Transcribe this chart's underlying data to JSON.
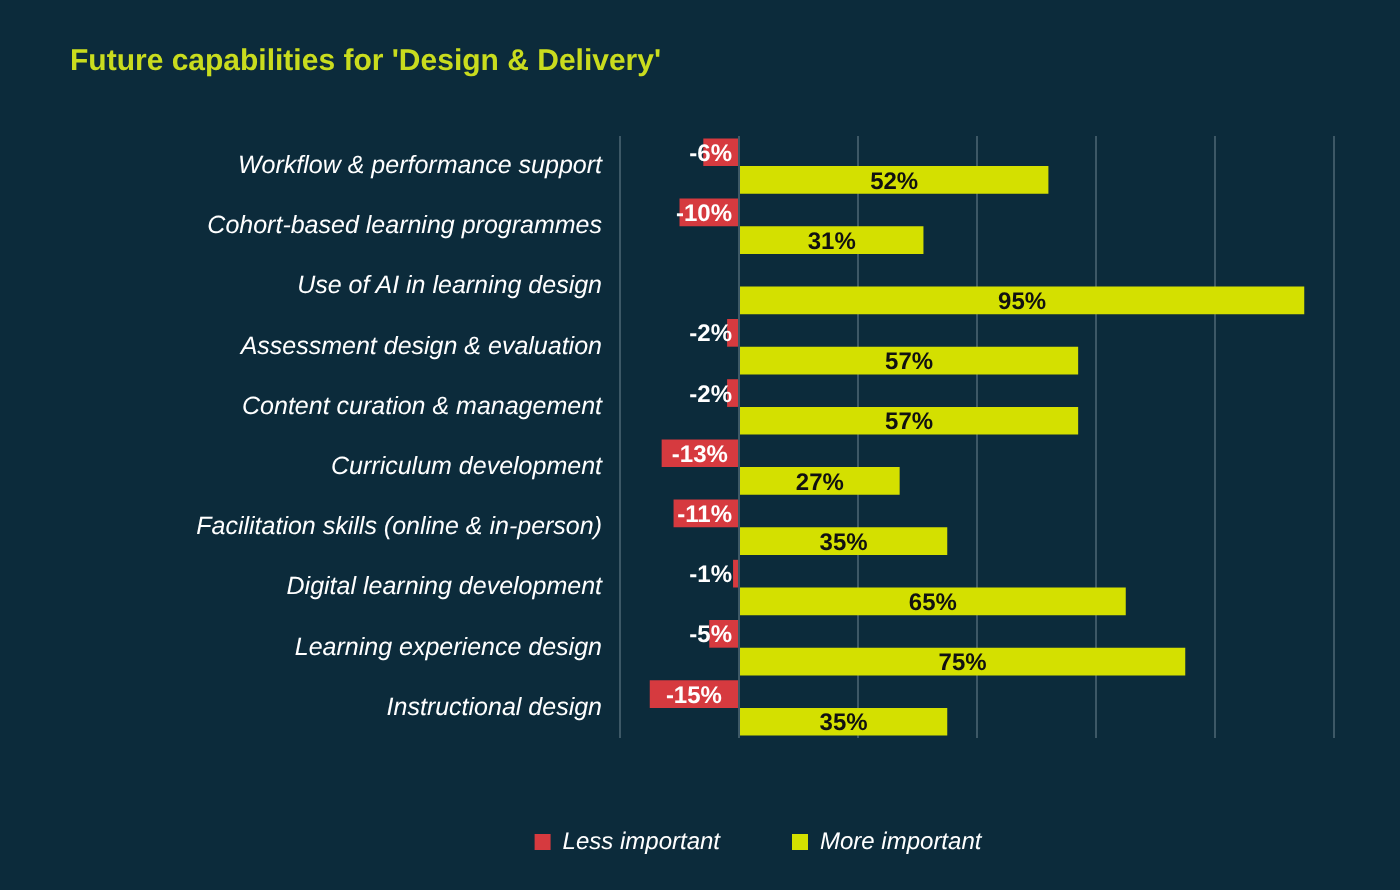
{
  "chart_data": {
    "type": "bar",
    "orientation": "horizontal",
    "title": "Future capabilities for 'Design & Delivery'",
    "categories": [
      "Workflow & performance support",
      "Cohort-based learning programmes",
      "Use of AI in learning design",
      "Assessment design & evaluation",
      "Content curation & management",
      "Curriculum development",
      "Facilitation skills (online & in-person)",
      "Digital learning development",
      "Learning experience design",
      "Instructional design"
    ],
    "series": [
      {
        "name": "Less important",
        "color": "#d63a3f",
        "values": [
          -6,
          -10,
          null,
          -2,
          -2,
          -13,
          -11,
          -1,
          -5,
          -15
        ],
        "value_labels": [
          "-6%",
          "-10%",
          null,
          "-2%",
          "-2%",
          "-13%",
          "-11%",
          "-1%",
          "-5%",
          "-15%"
        ]
      },
      {
        "name": "More important",
        "color": "#d4e000",
        "values": [
          52,
          31,
          95,
          57,
          57,
          27,
          35,
          65,
          75,
          35
        ],
        "value_labels": [
          "52%",
          "31%",
          "95%",
          "57%",
          "57%",
          "27%",
          "35%",
          "65%",
          "75%",
          "35%"
        ]
      }
    ],
    "xlim": [
      -20,
      100
    ],
    "xticks": [
      {
        "value": -20,
        "label": null
      },
      {
        "value": 0,
        "label": null
      },
      {
        "value": 20,
        "label": null
      },
      {
        "value": 40,
        "label": null
      },
      {
        "value": 60,
        "label": null
      },
      {
        "value": 80,
        "label": null
      },
      {
        "value": 100,
        "label": null
      }
    ],
    "grid": "x",
    "legend": "bottom",
    "tick_labels": "y"
  }
}
